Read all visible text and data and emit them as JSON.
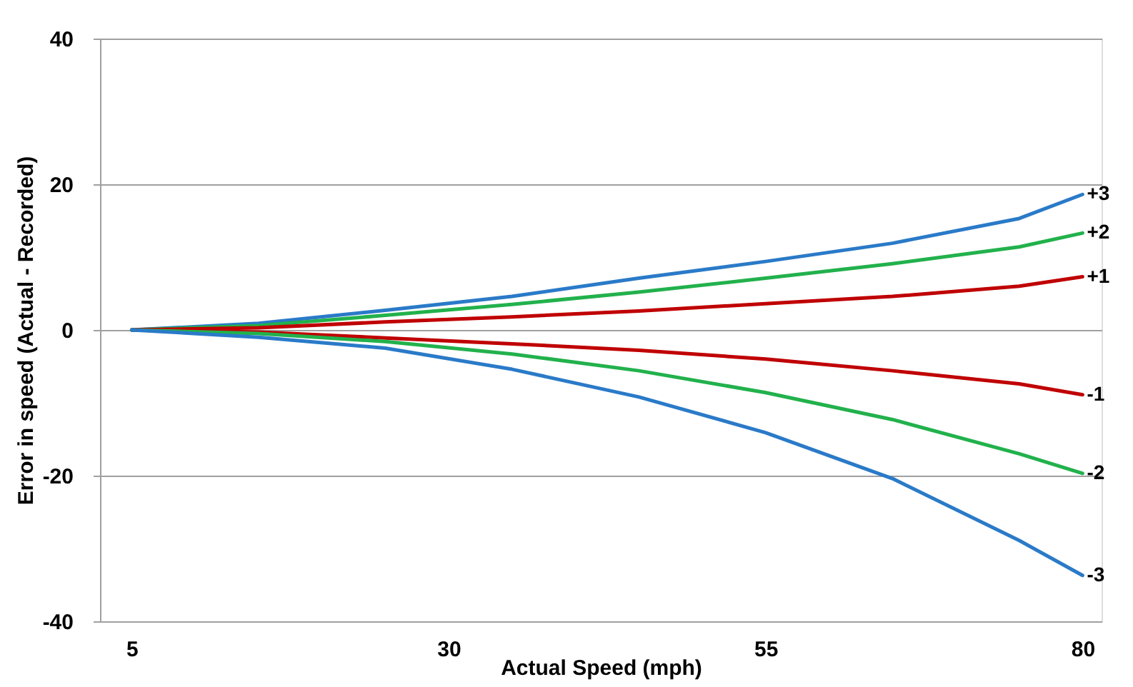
{
  "chart_data": {
    "type": "line",
    "xlabel": "Actual Speed (mph)",
    "ylabel": "Error in speed (Actual - Recorded)",
    "x": [
      5,
      15,
      25,
      35,
      45,
      55,
      65,
      75,
      80
    ],
    "xlim": [
      2.5,
      81.5
    ],
    "xticks": [
      5,
      30,
      55,
      80
    ],
    "ylim": [
      -40,
      40
    ],
    "yticks": [
      -40,
      -20,
      0,
      20,
      40
    ],
    "grid": "y",
    "legend": false,
    "line_style": "solid",
    "marker": "none",
    "series": [
      {
        "name": "+3",
        "color": "#2a7ac8",
        "values": [
          0,
          0.9,
          2.7,
          4.6,
          7.1,
          9.4,
          11.9,
          15.3,
          18.6
        ]
      },
      {
        "name": "+2",
        "color": "#22b14c",
        "values": [
          0,
          0.6,
          2.0,
          3.5,
          5.2,
          7.1,
          9.1,
          11.4,
          13.3
        ]
      },
      {
        "name": "+1",
        "color": "#c00000",
        "values": [
          0,
          0.3,
          1.1,
          1.8,
          2.6,
          3.6,
          4.6,
          6.0,
          7.3
        ]
      },
      {
        "name": "-1",
        "color": "#c00000",
        "values": [
          0,
          -0.3,
          -1.1,
          -1.9,
          -2.8,
          -4.0,
          -5.6,
          -7.4,
          -8.9
        ]
      },
      {
        "name": "-2",
        "color": "#22b14c",
        "values": [
          0,
          -0.5,
          -1.6,
          -3.3,
          -5.6,
          -8.6,
          -12.3,
          -17.0,
          -19.7
        ]
      },
      {
        "name": "-3",
        "color": "#2a7ac8",
        "values": [
          0,
          -1.0,
          -2.5,
          -5.4,
          -9.2,
          -14.1,
          -20.4,
          -28.9,
          -33.7
        ]
      }
    ]
  }
}
